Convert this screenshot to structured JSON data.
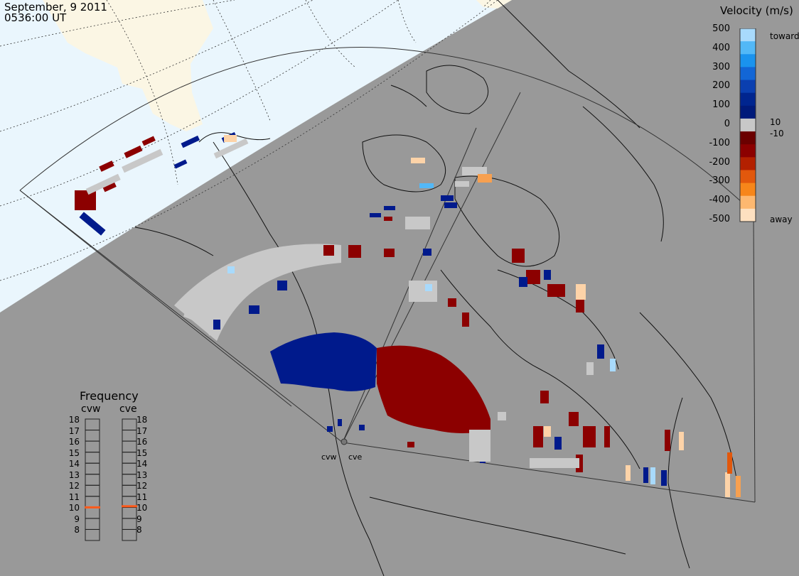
{
  "header": {
    "date": "September, 9 2011",
    "time": "0536:00 UT"
  },
  "colorbar": {
    "title": "Velocity (m/s)",
    "ticks": [
      "500",
      "400",
      "300",
      "200",
      "100",
      "0",
      "-100",
      "-200",
      "-300",
      "-400",
      "-500"
    ],
    "label_pos_small": "10",
    "label_neg_small": "-10",
    "label_toward": "toward",
    "label_away": "away",
    "colors": [
      "#fde0c0",
      "#fdb870",
      "#f7861a",
      "#e2580c",
      "#b32000",
      "#8c0000",
      "#6b0000",
      "#c8c8c8",
      "#001a7a",
      "#00258f",
      "#0a3fb0",
      "#1266d6",
      "#1a93ee",
      "#52b8f7",
      "#a8dafc"
    ]
  },
  "frequency": {
    "title": "Frequency",
    "radars": [
      "cvw",
      "cve"
    ],
    "scale": [
      "18",
      "17",
      "16",
      "15",
      "14",
      "13",
      "12",
      "11",
      "10",
      "9",
      "8"
    ],
    "cvw_mhz": 10.5,
    "cve_mhz": 10.6,
    "marker_color": "#ff5a1a"
  },
  "site_labels": [
    "cvw",
    "cve"
  ]
}
